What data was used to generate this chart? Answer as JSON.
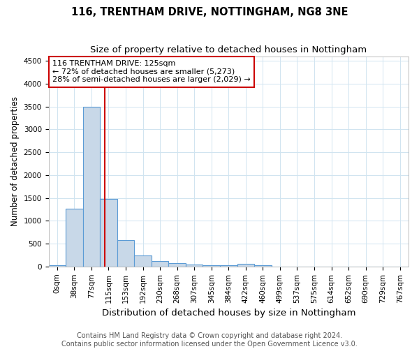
{
  "title": "116, TRENTHAM DRIVE, NOTTINGHAM, NG8 3NE",
  "subtitle": "Size of property relative to detached houses in Nottingham",
  "xlabel": "Distribution of detached houses by size in Nottingham",
  "ylabel": "Number of detached properties",
  "categories": [
    "0sqm",
    "38sqm",
    "77sqm",
    "115sqm",
    "153sqm",
    "192sqm",
    "230sqm",
    "268sqm",
    "307sqm",
    "345sqm",
    "384sqm",
    "422sqm",
    "460sqm",
    "499sqm",
    "537sqm",
    "575sqm",
    "614sqm",
    "652sqm",
    "690sqm",
    "729sqm",
    "767sqm"
  ],
  "values": [
    30,
    1270,
    3500,
    1480,
    570,
    240,
    120,
    75,
    45,
    35,
    30,
    55,
    30,
    0,
    0,
    0,
    0,
    0,
    0,
    0,
    0
  ],
  "bar_color": "#c8d8e8",
  "bar_edge_color": "#5b9bd5",
  "vline_x": 3,
  "vline_color": "#cc0000",
  "annotation_text": "116 TRENTHAM DRIVE: 125sqm\n← 72% of detached houses are smaller (5,273)\n28% of semi-detached houses are larger (2,029) →",
  "annotation_box_color": "#ffffff",
  "annotation_box_edge_color": "#cc0000",
  "ylim": [
    0,
    4600
  ],
  "yticks": [
    0,
    500,
    1000,
    1500,
    2000,
    2500,
    3000,
    3500,
    4000,
    4500
  ],
  "bin_width": 38,
  "footnote": "Contains HM Land Registry data © Crown copyright and database right 2024.\nContains public sector information licensed under the Open Government Licence v3.0.",
  "background_color": "#ffffff",
  "grid_color": "#d0e4f0",
  "title_fontsize": 10.5,
  "subtitle_fontsize": 9.5,
  "xlabel_fontsize": 9.5,
  "ylabel_fontsize": 8.5,
  "tick_fontsize": 7.5,
  "annotation_fontsize": 8,
  "footnote_fontsize": 7
}
